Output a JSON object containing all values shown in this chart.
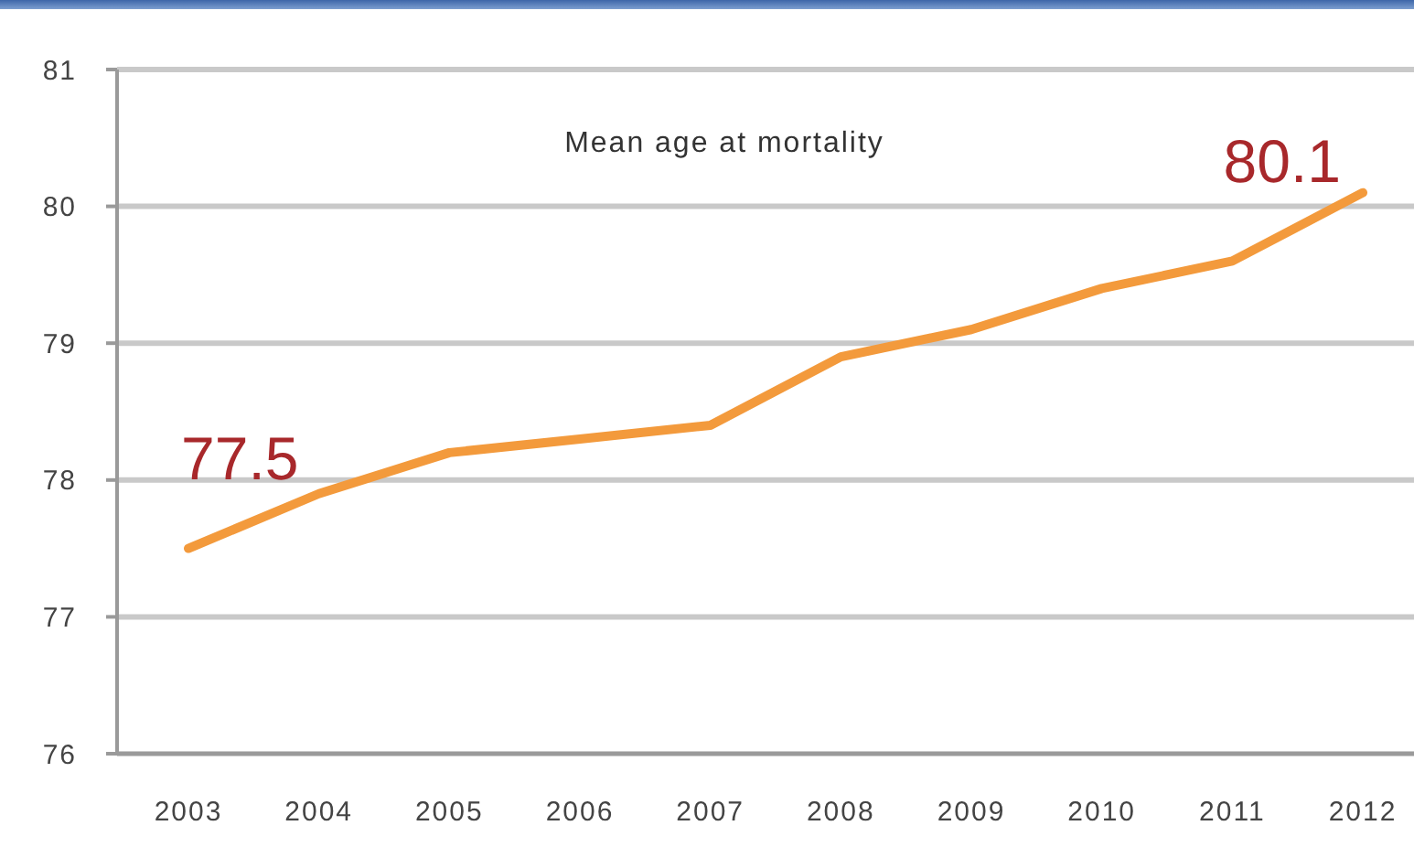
{
  "chart_data": {
    "type": "line",
    "title": "Mean age at mortality",
    "categories": [
      "2003",
      "2004",
      "2005",
      "2006",
      "2007",
      "2008",
      "2009",
      "2010",
      "2011",
      "2012"
    ],
    "series": [
      {
        "color": "#f39a3c",
        "values": [
          77.5,
          77.9,
          78.2,
          78.3,
          78.4,
          78.9,
          79.1,
          79.4,
          79.6,
          80.1
        ],
        "value_labels": [
          "77.5",
          null,
          null,
          null,
          null,
          null,
          null,
          null,
          null,
          "80.1"
        ]
      }
    ],
    "ylim": [
      76,
      81
    ],
    "yticks": [
      76,
      77,
      78,
      79,
      80,
      81
    ],
    "grid": "y"
  }
}
